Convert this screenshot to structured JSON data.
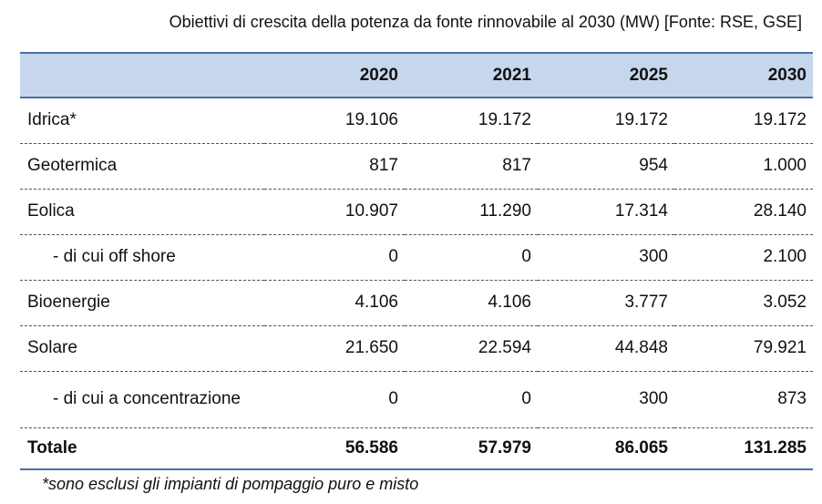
{
  "title": "Obiettivi di crescita della potenza da fonte rinnovabile al 2030 (MW) [Fonte: RSE, GSE]",
  "table": {
    "header": [
      "",
      "2020",
      "2021",
      "2025",
      "2030"
    ],
    "rows": [
      [
        "Idrica*",
        "19.106",
        "19.172",
        "19.172",
        "19.172"
      ],
      [
        "Geotermica",
        "817",
        "817",
        "954",
        "1.000"
      ],
      [
        "Eolica",
        "10.907",
        "11.290",
        "17.314",
        "28.140"
      ],
      [
        "- di cui off shore",
        "0",
        "0",
        "300",
        "2.100"
      ],
      [
        "Bioenergie",
        "4.106",
        "4.106",
        "3.777",
        "3.052"
      ],
      [
        "Solare",
        "21.650",
        "22.594",
        "44.848",
        "79.921"
      ],
      [
        "- di cui a concentrazione",
        "0",
        "0",
        "300",
        "873"
      ],
      [
        "Totale",
        "56.586",
        "57.979",
        "86.065",
        "131.285"
      ]
    ]
  },
  "footnote": "*sono esclusi gli impianti di pompaggio puro e misto"
}
